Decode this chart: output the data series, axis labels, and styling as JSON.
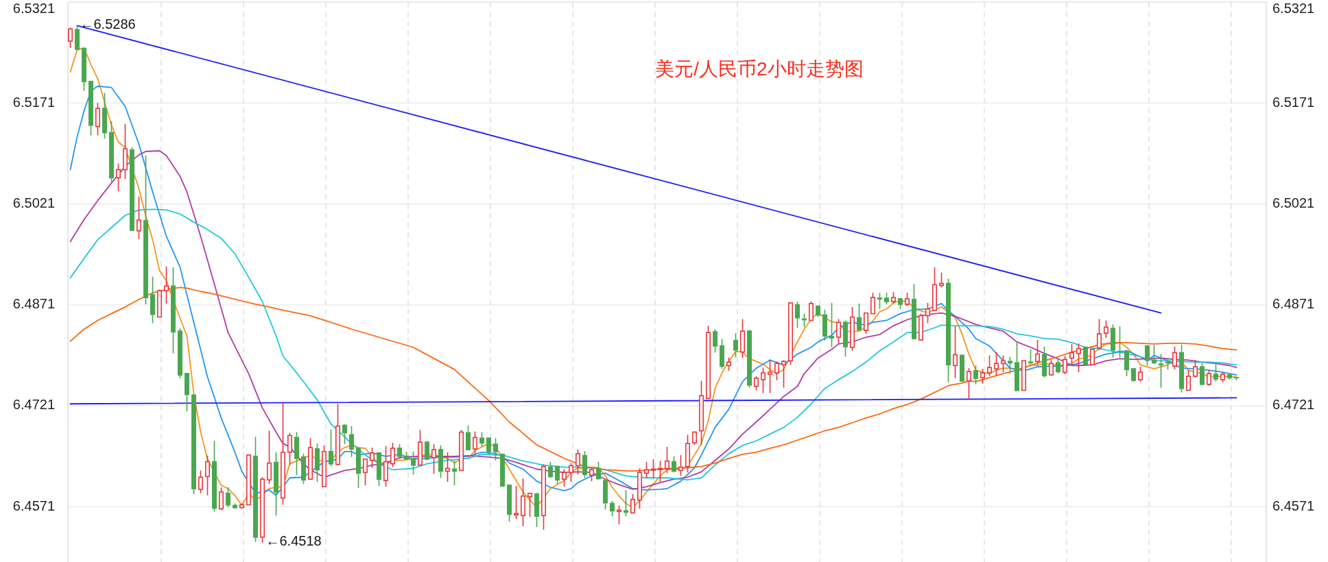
{
  "chart_data": {
    "type": "candlestick",
    "title": "美元/人民币2小时走势图",
    "categories": [
      null,
      null,
      null,
      null,
      null,
      null,
      null,
      null,
      null,
      null,
      null,
      null,
      null,
      null,
      null,
      null,
      null,
      null,
      null,
      null,
      null,
      null,
      null,
      null,
      null,
      null,
      null,
      null,
      null,
      null,
      null,
      null,
      null,
      null,
      null,
      null,
      null,
      null,
      null,
      null,
      null,
      null,
      null,
      null,
      null,
      null,
      null,
      null,
      null,
      null,
      null,
      null,
      null,
      null,
      null,
      null,
      null,
      null,
      null,
      null,
      null,
      null,
      null,
      null,
      null,
      null,
      null,
      null,
      null,
      null,
      null,
      null,
      null,
      null,
      null,
      null,
      null,
      null,
      null,
      null,
      null,
      null,
      null,
      null,
      null,
      null,
      null,
      null,
      null,
      null,
      null,
      null,
      null,
      null,
      null,
      null,
      null,
      null,
      null,
      null,
      null,
      null,
      null,
      null,
      null,
      null,
      null,
      null,
      null,
      null,
      null,
      null,
      null,
      null,
      null,
      null,
      null,
      null,
      null,
      null,
      null,
      null,
      null,
      null,
      null,
      null,
      null,
      null,
      null,
      null,
      null,
      null,
      null,
      null,
      null,
      null,
      null,
      null,
      null,
      null,
      null,
      null,
      null,
      null,
      null,
      null,
      null,
      null,
      null,
      null,
      null,
      null,
      null,
      null,
      null,
      null,
      null,
      null,
      null,
      null,
      null,
      null,
      null,
      null,
      null,
      null,
      null,
      null,
      null,
      null,
      null
    ],
    "ohlc": [
      [
        6.5263,
        6.5283,
        6.5253,
        6.5281
      ],
      [
        6.5281,
        6.5286,
        6.5249,
        6.525
      ],
      [
        6.5253,
        6.5253,
        6.5189,
        6.5202
      ],
      [
        6.5204,
        6.5204,
        6.5123,
        6.5137
      ],
      [
        6.5136,
        6.5171,
        6.5123,
        6.5163
      ],
      [
        6.5164,
        6.5186,
        6.5118,
        6.5126
      ],
      [
        6.5128,
        6.5144,
        6.5054,
        6.5059
      ],
      [
        6.506,
        6.5081,
        6.504,
        6.5072
      ],
      [
        6.5072,
        6.514,
        6.5058,
        6.5103
      ],
      [
        6.5102,
        6.5105,
        6.4981,
        6.4981
      ],
      [
        6.4981,
        6.5032,
        6.4969,
        6.4997
      ],
      [
        6.4997,
        6.5093,
        6.4872,
        6.4881
      ],
      [
        6.4887,
        6.4913,
        6.4844,
        6.4856
      ],
      [
        6.4853,
        6.4894,
        6.4853,
        6.4892
      ],
      [
        6.4892,
        6.4928,
        6.4873,
        6.4899
      ],
      [
        6.49,
        6.4927,
        6.4799,
        6.483
      ],
      [
        6.4833,
        6.4836,
        6.4762,
        6.4766
      ],
      [
        6.477,
        6.477,
        6.4713,
        6.4737
      ],
      [
        6.4738,
        6.4738,
        6.459,
        6.4597
      ],
      [
        6.4597,
        6.4625,
        6.4591,
        6.4615
      ],
      [
        6.4616,
        6.4647,
        6.4588,
        6.4638
      ],
      [
        6.4639,
        6.4669,
        6.4564,
        6.4568
      ],
      [
        6.4568,
        6.46,
        6.4566,
        6.4593
      ],
      [
        6.4592,
        6.46,
        6.457,
        6.4573
      ],
      [
        6.4574,
        6.4576,
        6.4568,
        6.4569
      ],
      [
        6.457,
        6.4576,
        6.4568,
        6.4574
      ],
      [
        6.4574,
        6.4649,
        6.4574,
        6.4648
      ],
      [
        6.4647,
        6.4675,
        6.4519,
        6.4525
      ],
      [
        6.4526,
        6.4615,
        6.4518,
        6.4612
      ],
      [
        6.4611,
        6.4684,
        6.4605,
        6.4636
      ],
      [
        6.4638,
        6.4652,
        6.4558,
        6.4592
      ],
      [
        6.4584,
        6.4725,
        6.4574,
        6.4652
      ],
      [
        6.4652,
        6.4681,
        6.4633,
        6.4677
      ],
      [
        6.4675,
        6.4682,
        6.4618,
        6.4642
      ],
      [
        6.4646,
        6.465,
        6.4605,
        6.461
      ],
      [
        6.4612,
        6.4673,
        6.4612,
        6.4659
      ],
      [
        6.4658,
        6.4665,
        6.4608,
        6.4625
      ],
      [
        6.4601,
        6.4662,
        6.4601,
        6.4653
      ],
      [
        6.4654,
        6.4686,
        6.4631,
        6.4634
      ],
      [
        6.4634,
        6.4724,
        6.4633,
        6.4691
      ],
      [
        6.4693,
        6.4694,
        6.4664,
        6.468
      ],
      [
        6.4679,
        6.4691,
        6.4645,
        6.4656
      ],
      [
        6.4659,
        6.4659,
        6.4599,
        6.462
      ],
      [
        6.4622,
        6.4642,
        6.4603,
        6.4642
      ],
      [
        6.464,
        6.4659,
        6.4629,
        6.4651
      ],
      [
        6.4652,
        6.4652,
        6.4602,
        6.4611
      ],
      [
        6.461,
        6.4661,
        6.4601,
        6.4638
      ],
      [
        6.4635,
        6.4666,
        6.463,
        6.4658
      ],
      [
        6.4659,
        6.4664,
        6.4642,
        6.4645
      ],
      [
        6.4647,
        6.4653,
        6.4641,
        6.4641
      ],
      [
        6.4643,
        6.4653,
        6.4619,
        6.4632
      ],
      [
        6.4633,
        6.4685,
        6.4633,
        6.4667
      ],
      [
        6.4668,
        6.4669,
        6.464,
        6.4641
      ],
      [
        6.4644,
        6.4664,
        6.462,
        6.4656
      ],
      [
        6.4657,
        6.4662,
        6.4614,
        6.4623
      ],
      [
        6.4624,
        6.4652,
        6.4608,
        6.4628
      ],
      [
        6.4628,
        6.464,
        6.4603,
        6.4623
      ],
      [
        6.4625,
        6.4685,
        6.4625,
        6.4682
      ],
      [
        6.4682,
        6.4692,
        6.4655,
        6.4655
      ],
      [
        6.4657,
        6.4683,
        6.4647,
        6.4674
      ],
      [
        6.4674,
        6.4682,
        6.4661,
        6.4665
      ],
      [
        6.4674,
        6.4674,
        6.4648,
        6.4652
      ],
      [
        6.4665,
        6.4673,
        6.464,
        6.4652
      ],
      [
        6.465,
        6.465,
        6.4601,
        6.4601
      ],
      [
        6.4604,
        6.4604,
        6.4549,
        6.4559
      ],
      [
        6.4559,
        6.4602,
        6.4553,
        6.4561
      ],
      [
        6.4558,
        6.4613,
        6.4542,
        6.4587
      ],
      [
        6.4586,
        6.4592,
        6.4556,
        6.4591
      ],
      [
        6.4591,
        6.4592,
        6.4541,
        6.4556
      ],
      [
        6.4558,
        6.4634,
        6.4537,
        6.4631
      ],
      [
        6.4631,
        6.4638,
        6.4614,
        6.4615
      ],
      [
        6.4632,
        6.4632,
        6.4605,
        6.461
      ],
      [
        6.4612,
        6.4627,
        6.4601,
        6.4622
      ],
      [
        6.4622,
        6.4636,
        6.4608,
        6.4632
      ],
      [
        6.4632,
        6.4656,
        6.4619,
        6.465
      ],
      [
        6.4648,
        6.4654,
        6.4614,
        6.4618
      ],
      [
        6.4618,
        6.4629,
        6.4609,
        6.4626
      ],
      [
        6.4629,
        6.4638,
        6.4611,
        6.4612
      ],
      [
        6.4611,
        6.4611,
        6.4567,
        6.4576
      ],
      [
        6.4577,
        6.458,
        6.4557,
        6.4564
      ],
      [
        6.4564,
        6.4573,
        6.4545,
        6.4566
      ],
      [
        6.4566,
        6.4596,
        6.4557,
        6.4562
      ],
      [
        6.4562,
        6.459,
        6.4561,
        6.4582
      ],
      [
        6.4581,
        6.4628,
        6.4568,
        6.4622
      ],
      [
        6.4621,
        6.4638,
        6.4614,
        6.4626
      ],
      [
        6.4626,
        6.4642,
        6.4614,
        6.4627
      ],
      [
        6.4627,
        6.4639,
        6.4608,
        6.4628
      ],
      [
        6.4628,
        6.466,
        6.4621,
        6.4639
      ],
      [
        6.4639,
        6.4646,
        6.4622,
        6.4623
      ],
      [
        6.4625,
        6.4648,
        6.4617,
        6.463
      ],
      [
        6.4631,
        6.4678,
        6.4622,
        6.4665
      ],
      [
        6.4666,
        6.4683,
        6.4663,
        6.4682
      ],
      [
        6.4684,
        6.4758,
        6.4663,
        6.4736
      ],
      [
        6.4732,
        6.484,
        6.4732,
        6.483
      ],
      [
        6.4832,
        6.4835,
        6.48,
        6.4809
      ],
      [
        6.4811,
        6.482,
        6.4776,
        6.4779
      ],
      [
        6.4781,
        6.4793,
        6.4773,
        6.4786
      ],
      [
        6.4819,
        6.4829,
        6.4793,
        6.4803
      ],
      [
        6.4801,
        6.485,
        6.4792,
        6.4832
      ],
      [
        6.4833,
        6.4834,
        6.4748,
        6.4751
      ],
      [
        6.475,
        6.4765,
        6.4744,
        6.4762
      ],
      [
        6.476,
        6.4778,
        6.474,
        6.477
      ],
      [
        6.4768,
        6.479,
        6.474,
        6.4771
      ],
      [
        6.477,
        6.4787,
        6.4759,
        6.4784
      ],
      [
        6.4782,
        6.4789,
        6.4748,
        6.4787
      ],
      [
        6.4788,
        6.4875,
        6.4782,
        6.4874
      ],
      [
        6.4872,
        6.4876,
        6.4837,
        6.4851
      ],
      [
        6.4851,
        6.4858,
        6.4838,
        6.4848
      ],
      [
        6.4848,
        6.4876,
        6.4848,
        6.4873
      ],
      [
        6.487,
        6.487,
        6.4853,
        6.4855
      ],
      [
        6.4857,
        6.4864,
        6.4818,
        6.4824
      ],
      [
        6.4825,
        6.4874,
        6.4808,
        6.4821
      ],
      [
        6.4823,
        6.485,
        6.4813,
        6.4845
      ],
      [
        6.4846,
        6.4848,
        6.4794,
        6.4808
      ],
      [
        6.4808,
        6.4868,
        6.4803,
        6.4853
      ],
      [
        6.4853,
        6.4873,
        6.4833,
        6.4833
      ],
      [
        6.4833,
        6.4859,
        6.4828,
        6.4859
      ],
      [
        6.4858,
        6.4889,
        6.4858,
        6.4882
      ],
      [
        6.4882,
        6.4889,
        6.4865,
        6.4879
      ],
      [
        6.4882,
        6.4889,
        6.4872,
        6.4875
      ],
      [
        6.4876,
        6.489,
        6.4873,
        6.4882
      ],
      [
        6.4881,
        6.4881,
        6.4865,
        6.4871
      ],
      [
        6.4872,
        6.4889,
        6.4869,
        6.488
      ],
      [
        6.488,
        6.4902,
        6.482,
        6.482
      ],
      [
        6.4819,
        6.4858,
        6.4818,
        6.4855
      ],
      [
        6.4855,
        6.4874,
        6.4844,
        6.4865
      ],
      [
        6.4863,
        6.4927,
        6.4862,
        6.4901
      ],
      [
        6.49,
        6.4919,
        6.4897,
        6.4903
      ],
      [
        6.4904,
        6.491,
        6.4756,
        6.4781
      ],
      [
        6.4781,
        6.4839,
        6.4762,
        6.4797
      ],
      [
        6.4797,
        6.4797,
        6.4757,
        6.4757
      ],
      [
        6.4758,
        6.4777,
        6.4732,
        6.4772
      ],
      [
        6.4774,
        6.4781,
        6.4753,
        6.4761
      ],
      [
        6.4763,
        6.4776,
        6.4754,
        6.477
      ],
      [
        6.477,
        6.4796,
        6.4765,
        6.4778
      ],
      [
        6.4776,
        6.4801,
        6.4766,
        6.4784
      ],
      [
        6.4784,
        6.4796,
        6.4771,
        6.4788
      ],
      [
        6.4788,
        6.4794,
        6.4769,
        6.4784
      ],
      [
        6.4786,
        6.4815,
        6.4743,
        6.4743
      ],
      [
        6.4744,
        6.4788,
        6.4744,
        6.4788
      ],
      [
        6.4787,
        6.4805,
        6.4783,
        6.4784
      ],
      [
        6.4787,
        6.4819,
        6.4782,
        6.4798
      ],
      [
        6.4798,
        6.4809,
        6.4763,
        6.4765
      ],
      [
        6.4767,
        6.479,
        6.4766,
        6.4784
      ],
      [
        6.4786,
        6.4791,
        6.4769,
        6.4771
      ],
      [
        6.4771,
        6.4795,
        6.4768,
        6.479
      ],
      [
        6.4792,
        6.4813,
        6.4782,
        6.48
      ],
      [
        6.4799,
        6.4814,
        6.4771,
        6.4806
      ],
      [
        6.4809,
        6.4809,
        6.4782,
        6.4782
      ],
      [
        6.4782,
        6.4806,
        6.4782,
        6.4805
      ],
      [
        6.4807,
        6.485,
        6.4804,
        6.4828
      ],
      [
        6.4829,
        6.4848,
        6.4822,
        6.4838
      ],
      [
        6.4837,
        6.4842,
        6.4793,
        6.4803
      ],
      [
        6.4803,
        6.4839,
        6.4793,
        6.4802
      ],
      [
        6.4802,
        6.4803,
        6.4765,
        6.4774
      ],
      [
        6.4777,
        6.4777,
        6.4757,
        6.4758
      ],
      [
        6.476,
        6.4779,
        6.4757,
        6.4771
      ],
      [
        6.4811,
        6.4811,
        6.4781,
        6.4788
      ],
      [
        6.479,
        6.4811,
        6.4783,
        6.4784
      ],
      [
        6.4784,
        6.4798,
        6.4748,
        6.4781
      ],
      [
        6.4787,
        6.4792,
        6.4775,
        6.4784
      ],
      [
        6.478,
        6.4809,
        6.4775,
        6.48
      ],
      [
        6.4801,
        6.4812,
        6.4741,
        6.4746
      ],
      [
        6.4744,
        6.4774,
        6.4744,
        6.4765
      ],
      [
        6.4765,
        6.4789,
        6.4763,
        6.4779
      ],
      [
        6.478,
        6.4785,
        6.4752,
        6.4752
      ],
      [
        6.4753,
        6.4774,
        6.4751,
        6.4769
      ],
      [
        6.4769,
        6.4783,
        6.4757,
        6.476
      ],
      [
        6.476,
        6.4771,
        6.4756,
        6.4768
      ],
      [
        6.4768,
        6.4769,
        6.476,
        6.4762
      ],
      [
        6.4764,
        6.4764,
        6.4759,
        6.4762
      ]
    ],
    "series": [
      {
        "type": "line",
        "color": "#f7941d",
        "values": [
          6.5217,
          6.525,
          6.5253,
          6.5228,
          6.5207,
          6.5172,
          6.5138,
          6.5113,
          6.5105,
          null,
          6.5044,
          6.5003,
          6.4968,
          6.4922,
          6.4907,
          null,
          6.4851,
          6.4825,
          6.4739,
          6.4682,
          6.4642,
          null,
          6.4603,
          6.4598,
          6.4588,
          6.4573,
          6.4591,
          6.4581,
          6.4588,
          6.4598,
          6.46,
          6.4601,
          6.4635,
          6.4639,
          6.4643,
          6.4648,
          6.4641,
          6.4638,
          6.4639,
          6.4653,
          6.4659,
          6.4663,
          6.4659,
          6.4658,
          6.4645,
          6.4635,
          null,
          6.464,
          6.464,
          6.4641,
          6.4642,
          6.4648,
          6.4648,
          6.4649,
          6.4645,
          6.4643,
          6.4636,
          6.4643,
          6.4643,
          6.4655,
          6.466,
          6.4665,
          6.466,
          null,
          6.4627,
          6.461,
          6.4593,
          6.4581,
          6.457,
          6.4585,
          6.4598,
          6.4604,
          6.461,
          6.4622,
          6.4629,
          6.4627,
          6.463,
          6.4629,
          6.4617,
          6.46,
          6.4587,
          6.4576,
          6.457,
          6.458,
          6.4593,
          6.4605,
          6.4617,
          6.4626,
          6.4627,
          6.4626,
          6.4632,
          6.4648,
          6.4665,
          6.4699,
          6.4747,
          6.477,
          6.4787,
          6.4802,
          6.4801,
          6.4791,
          6.4787,
          6.4783,
          6.4775,
          6.4769,
          6.4775,
          null,
          6.4816,
          6.4835,
          6.485,
          6.4859,
          6.4852,
          6.4846,
          6.4844,
          6.4832,
          6.4831,
          6.4832,
          6.4838,
          6.4847,
          6.4861,
          6.4865,
          6.4874,
          6.4877,
          6.4876,
          6.4867,
          6.4862,
          6.4859,
          6.4864,
          6.4868,
          6.486,
          6.4852,
          6.4828,
          6.4798,
          6.4774,
          6.4771,
          6.4769,
          6.4774,
          6.4777,
          6.4777,
          6.4775,
          6.4777,
          6.4782,
          6.4781,
          6.4784,
          6.4782,
          6.4782,
          6.4781,
          6.4784,
          6.4791,
          6.4792,
          6.4798,
          6.4806,
          6.4813,
          6.4813,
          6.4815,
          6.4808,
          6.4798,
          6.4782,
          6.4779,
          6.4776,
          6.4779,
          6.4782,
          6.4788,
          6.4786,
          6.4774,
          6.4771,
          6.4769,
          6.4764,
          6.4765,
          6.4765,
          6.4764,
          6.4764
        ]
      },
      {
        "type": "line",
        "color": "#2196f3",
        "values": [
          6.5072,
          6.5121,
          6.5159,
          6.5189,
          6.5196,
          null,
          6.5194,
          null,
          6.5166,
          null,
          6.511,
          null,
          6.5039,
          null,
          6.4973,
          null,
          6.4927,
          null,
          6.4845,
          null,
          6.4764,
          null,
          6.4703,
          null,
          6.4652,
          6.4624,
          null,
          6.4591,
          null,
          6.4596,
          6.4588,
          6.4601,
          6.4614,
          null,
          6.4615,
          6.4623,
          null,
          6.4638,
          null,
          6.4642,
          6.4653,
          6.4653,
          6.4648,
          null,
          6.4651,
          null,
          6.4646,
          null,
          6.4649,
          null,
          6.4642,
          null,
          6.4643,
          null,
          6.4645,
          null,
          6.4645,
          null,
          6.4646,
          null,
          6.4652,
          null,
          6.465,
          6.4646,
          6.4636,
          null,
          6.4627,
          null,
          6.4609,
          null,
          6.46,
          null,
          6.4595,
          6.4598,
          6.4607,
          null,
          6.4617,
          null,
          6.4621,
          null,
          6.461,
          null,
          6.4598,
          null,
          6.4596,
          null,
          6.4597,
          6.4598,
          null,
          6.4609,
          null,
          6.4629,
          6.4648,
          null,
          6.4689,
          null,
          6.4716,
          null,
          6.4757,
          null,
          6.4777,
          null,
          6.4789,
          null,
          6.4782,
          null,
          6.4798,
          null,
          6.4808,
          6.4816,
          null,
          6.4826,
          6.4837,
          null,
          6.4846,
          6.4842,
          6.4842,
          6.4845,
          null,
          6.4848,
          null,
          6.4858,
          null,
          6.4864,
          null,
          6.4865,
          null,
          6.4873,
          6.4862,
          6.4854,
          null,
          6.4835,
          6.4821,
          null,
          6.481,
          null,
          6.4788,
          6.4777,
          6.4775,
          6.4773,
          null,
          6.4779,
          null,
          6.478,
          null,
          6.478,
          null,
          6.4784,
          null,
          6.4791,
          null,
          6.4798,
          null,
          6.4801,
          6.4803,
          null,
          6.4794,
          6.4788,
          6.4796,
          null,
          6.4788,
          null,
          6.4777,
          null,
          6.4776,
          null,
          6.4774,
          null,
          6.4771,
          null,
          6.4767
        ]
      },
      {
        "type": "line",
        "color": "#b23aa6",
        "values": [
          6.4965,
          null,
          6.4998,
          null,
          6.5026,
          null,
          6.5052,
          null,
          6.5077,
          null,
          6.5094,
          6.5099,
          null,
          6.51,
          6.5093,
          null,
          6.5062,
          6.5039,
          null,
          6.4973,
          null,
          6.4902,
          null,
          6.483,
          null,
          6.4789,
          6.4769,
          null,
          6.4718,
          null,
          6.4682,
          6.4665,
          6.466,
          null,
          6.4635,
          6.4626,
          null,
          6.4615,
          null,
          null,
          6.4625,
          null,
          6.4628,
          null,
          6.4633,
          null,
          6.4635,
          null,
          6.4644,
          null,
          6.4646,
          null,
          6.4646,
          null,
          6.4646,
          null,
          6.4646,
          null,
          6.4647,
          null,
          null,
          6.4645,
          null,
          6.4643,
          null,
          6.4637,
          null,
          null,
          6.4627,
          null,
          6.4624,
          null,
          6.4622,
          null,
          6.4623,
          null,
          6.4622,
          null,
          6.4612,
          null,
          6.4604,
          null,
          6.4597,
          null,
          6.4601,
          null,
          6.4607,
          null,
          6.4612,
          null,
          6.4615,
          null,
          6.4623,
          null,
          6.464,
          null,
          6.4657,
          null,
          6.4679,
          null,
          6.4697,
          null,
          6.4716,
          null,
          6.4735,
          null,
          6.475,
          6.4769,
          null,
          6.4792,
          null,
          6.4805,
          6.4813,
          null,
          6.4816,
          null,
          6.4823,
          null,
          6.4827,
          null,
          6.484,
          null,
          6.4849,
          null,
          6.4855,
          null,
          6.4858,
          6.4859,
          null,
          6.4854,
          null,
          6.4846,
          6.4842,
          null,
          6.4837,
          null,
          6.4832,
          null,
          6.4816,
          null,
          6.4808,
          null,
          6.4799,
          null,
          6.4791,
          null,
          6.4781,
          6.4781,
          null,
          6.4782,
          null,
          6.4788,
          null,
          6.4791,
          null,
          6.479,
          null,
          6.4791,
          null,
          6.4792,
          null,
          6.479,
          null,
          6.4789,
          null,
          6.4786,
          null,
          6.4784,
          null,
          6.4781,
          6.4778
        ]
      },
      {
        "type": "line",
        "color": "#22c7dc",
        "values": [
          6.4911,
          null,
          6.494,
          null,
          6.4968,
          null,
          6.4986,
          null,
          6.5004,
          null,
          6.5012,
          null,
          6.5013,
          null,
          6.5012,
          null,
          6.5006,
          null,
          6.4994,
          null,
          6.4983,
          null,
          6.497,
          null,
          6.4947,
          null,
          6.4912,
          null,
          6.4876,
          null,
          6.4825,
          6.4795,
          null,
          6.477,
          null,
          null,
          6.473,
          null,
          6.4694,
          null,
          null,
          6.4665,
          null,
          6.4648,
          null,
          6.4635,
          null,
          6.4626,
          null,
          null,
          6.4628,
          null,
          6.4635,
          null,
          null,
          6.464,
          null,
          null,
          6.4643,
          null,
          6.4649,
          null,
          6.4648,
          6.4648,
          null,
          null,
          6.4639,
          null,
          null,
          6.4633,
          null,
          null,
          6.463,
          null,
          null,
          6.463,
          null,
          null,
          6.4626,
          null,
          null,
          6.4617,
          null,
          null,
          6.4614,
          null,
          null,
          6.4614,
          null,
          null,
          6.4611,
          null,
          6.4614,
          null,
          6.4633,
          null,
          6.465,
          null,
          6.4662,
          null,
          6.4669,
          null,
          6.4679,
          null,
          6.4689,
          null,
          6.4704,
          null,
          6.4724,
          null,
          6.4747,
          null,
          6.476,
          null,
          6.4772,
          null,
          6.4786,
          null,
          6.4803,
          null,
          6.4816,
          null,
          6.483,
          null,
          6.483,
          null,
          6.4837,
          6.4841,
          null,
          6.484,
          null,
          6.484,
          6.484,
          null,
          6.4839,
          null,
          6.4835,
          null,
          6.4828,
          null,
          6.4825,
          null,
          6.4821,
          null,
          6.482,
          null,
          6.4815,
          null,
          6.4808,
          null,
          6.4806,
          null,
          6.4802,
          null,
          6.4799,
          null,
          6.4794,
          null,
          6.4788,
          null,
          6.4788,
          null,
          6.4787,
          null,
          6.4786,
          null,
          6.4786,
          null,
          6.4785,
          null,
          6.4782
        ]
      },
      {
        "type": "line",
        "color": "#ff6410",
        "values": [
          6.4817,
          null,
          6.4835,
          null,
          6.4848,
          null,
          6.4858,
          null,
          6.4868,
          null,
          6.4879,
          null,
          6.4889,
          null,
          6.4894,
          null,
          6.4897,
          6.4896,
          null,
          6.4891,
          null,
          6.4887,
          null,
          6.4882,
          null,
          6.4877,
          null,
          6.4872,
          null,
          6.4868,
          null,
          6.4863,
          null,
          null,
          null,
          6.4855,
          null,
          null,
          null,
          null,
          null,
          6.4835,
          null,
          null,
          null,
          null,
          null,
          null,
          null,
          null,
          6.4808,
          null,
          null,
          null,
          null,
          null,
          6.4775,
          null,
          null,
          null,
          null,
          6.4729,
          null,
          null,
          6.4697,
          null,
          null,
          null,
          6.4663,
          null,
          null,
          null,
          6.4643,
          null,
          null,
          6.4631,
          null,
          null,
          6.4626,
          null,
          null,
          null,
          6.4624,
          null,
          null,
          null,
          6.4627,
          null,
          null,
          null,
          6.4629,
          null,
          6.4631,
          null,
          6.4636,
          null,
          6.4643,
          null,
          6.4649,
          null,
          6.4652,
          null,
          6.4658,
          null,
          6.4663,
          null,
          6.467,
          null,
          6.4677,
          null,
          6.4684,
          null,
          6.4689,
          null,
          6.4696,
          null,
          6.4703,
          null,
          6.4709,
          null,
          6.4717,
          null,
          6.4723,
          null,
          6.4731,
          null,
          6.4741,
          null,
          6.4751,
          null,
          6.4755,
          6.4758,
          6.4757,
          null,
          6.4763,
          null,
          6.4769,
          null,
          6.4774,
          null,
          6.4781,
          null,
          6.4788,
          null,
          6.4794,
          null,
          6.4801,
          null,
          6.4806,
          null,
          6.4812,
          null,
          6.4815,
          null,
          6.4815,
          null,
          6.4814,
          null,
          6.4813,
          null,
          6.4814,
          null,
          6.4814,
          null,
          6.4813,
          null,
          6.481,
          null,
          6.4806,
          null,
          6.4804
        ]
      },
      {
        "type": "line",
        "color": "#1a1aff",
        "values": [
          null,
          6.5286,
          null,
          null,
          null,
          null,
          null,
          null,
          null,
          null,
          null,
          null,
          null,
          null,
          null,
          null,
          null,
          null,
          null,
          null,
          null,
          null,
          null,
          null,
          null,
          null,
          null,
          null,
          null,
          null,
          null,
          null,
          null,
          null,
          null,
          null,
          null,
          null,
          null,
          null,
          null,
          null,
          null,
          null,
          null,
          null,
          null,
          null,
          null,
          null,
          null,
          null,
          null,
          null,
          null,
          null,
          null,
          null,
          null,
          null,
          null,
          null,
          null,
          null,
          null,
          null,
          null,
          null,
          null,
          null,
          null,
          null,
          null,
          null,
          null,
          null,
          null,
          null,
          null,
          null,
          null,
          null,
          null,
          null,
          null,
          null,
          null,
          null,
          null,
          null,
          null,
          null,
          null,
          null,
          null,
          null,
          null,
          null,
          null,
          null,
          null,
          null,
          null,
          null,
          null,
          null,
          null,
          null,
          null,
          null,
          null,
          null,
          null,
          null,
          null,
          null,
          null,
          null,
          null,
          null,
          null,
          null,
          null,
          null,
          null,
          null,
          null,
          null,
          null,
          null,
          null,
          null,
          null,
          null,
          null,
          null,
          null,
          null,
          null,
          null,
          null,
          null,
          null,
          null,
          null,
          null,
          null,
          null,
          null,
          null,
          null,
          null,
          null,
          null,
          null,
          null,
          null,
          null,
          null,
          6.4859,
          null,
          null,
          null,
          null,
          null,
          null,
          null,
          null,
          null,
          null,
          null
        ]
      },
      {
        "type": "line",
        "color": "#1a1aff",
        "values": [
          6.4724,
          null,
          null,
          null,
          null,
          null,
          null,
          null,
          null,
          null,
          null,
          null,
          null,
          null,
          null,
          null,
          null,
          null,
          null,
          null,
          null,
          null,
          null,
          null,
          null,
          null,
          null,
          null,
          null,
          null,
          null,
          null,
          null,
          null,
          null,
          null,
          null,
          null,
          null,
          null,
          null,
          null,
          null,
          null,
          null,
          null,
          null,
          null,
          null,
          null,
          null,
          null,
          null,
          null,
          null,
          null,
          null,
          null,
          null,
          null,
          null,
          null,
          null,
          null,
          null,
          null,
          null,
          null,
          null,
          null,
          null,
          null,
          null,
          null,
          null,
          null,
          null,
          null,
          null,
          null,
          null,
          null,
          null,
          null,
          null,
          null,
          null,
          null,
          null,
          null,
          null,
          null,
          null,
          null,
          null,
          null,
          null,
          null,
          null,
          null,
          null,
          null,
          null,
          null,
          null,
          null,
          null,
          null,
          null,
          null,
          null,
          null,
          null,
          null,
          null,
          null,
          null,
          null,
          null,
          null,
          null,
          null,
          null,
          null,
          null,
          null,
          null,
          null,
          null,
          null,
          null,
          null,
          null,
          null,
          null,
          null,
          null,
          null,
          null,
          null,
          null,
          null,
          null,
          null,
          null,
          null,
          null,
          null,
          null,
          null,
          null,
          null,
          null,
          null,
          null,
          null,
          null,
          null,
          null,
          null,
          null,
          null,
          null,
          null,
          null,
          null,
          null,
          null,
          null,
          null,
          6.4733
        ]
      }
    ],
    "annotations": [
      "←6.5286",
      "←6.4518"
    ],
    "ylim": [
      6.4489,
      6.5321
    ],
    "yticks": [
      6.4571,
      6.4721,
      6.4871,
      6.5021,
      6.5171,
      6.5321
    ],
    "y2lim": [
      6.4489,
      6.5321
    ],
    "y2ticks": [
      6.4571,
      6.4721,
      6.4871,
      6.5021,
      6.5171,
      6.5321
    ],
    "tick_labels": "y",
    "grid": true
  }
}
